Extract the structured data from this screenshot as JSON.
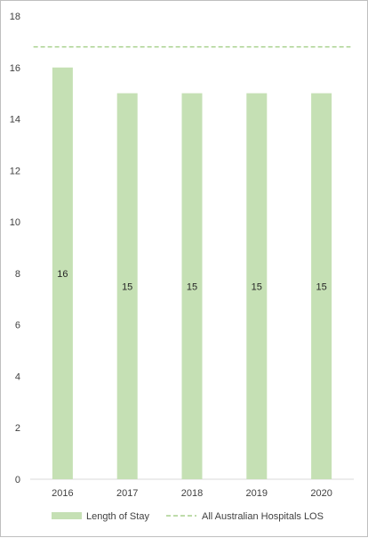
{
  "chart_data": {
    "type": "bar",
    "categories": [
      "2016",
      "2017",
      "2018",
      "2019",
      "2020"
    ],
    "series": [
      {
        "name": "Length of Stay",
        "type": "bar",
        "values": [
          16,
          15,
          15,
          15,
          15
        ],
        "color": "#c5e0b4"
      },
      {
        "name": "All Australian Hospitals LOS",
        "type": "line",
        "style": "dashed",
        "values": [
          16.8,
          16.8,
          16.8,
          16.8,
          16.8
        ],
        "color": "#a9d18e"
      }
    ],
    "ylim": [
      0,
      18
    ],
    "yticks": [
      0,
      2,
      4,
      6,
      8,
      10,
      12,
      14,
      16,
      18
    ],
    "grid": false,
    "legend": "bottom",
    "data_labels": [
      "16",
      "15",
      "15",
      "15",
      "15"
    ]
  }
}
